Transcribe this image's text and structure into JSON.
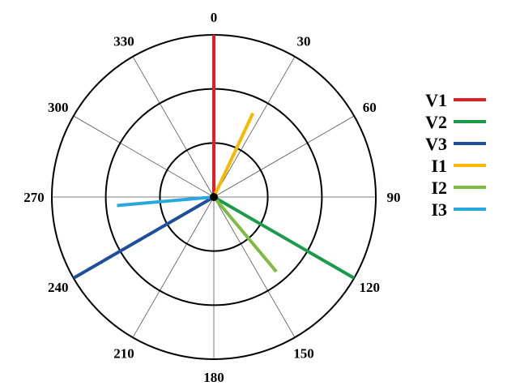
{
  "chart_data": {
    "type": "polar-phasor",
    "angle_labels": [
      "0",
      "30",
      "60",
      "90",
      "120",
      "150",
      "180",
      "210",
      "240",
      "270",
      "300",
      "330"
    ],
    "angles_deg": [
      0,
      30,
      60,
      90,
      120,
      150,
      180,
      210,
      240,
      270,
      300,
      330
    ],
    "rings": [
      0.333,
      0.667,
      1.0
    ],
    "grid": true,
    "direction": "clockwise",
    "zero_location": "top",
    "legend_placement": "right",
    "series": [
      {
        "name": "V1",
        "angle_deg": 0,
        "magnitude": 1.0,
        "color": "#e31f26"
      },
      {
        "name": "V2",
        "angle_deg": 120,
        "magnitude": 1.0,
        "color": "#1a9b4a"
      },
      {
        "name": "V3",
        "angle_deg": 240,
        "magnitude": 1.0,
        "color": "#1f4e9a"
      },
      {
        "name": "I1",
        "angle_deg": 25,
        "magnitude": 0.57,
        "color": "#f7b800"
      },
      {
        "name": "I2",
        "angle_deg": 140,
        "magnitude": 0.6,
        "color": "#7dbb42"
      },
      {
        "name": "I3",
        "angle_deg": 265,
        "magnitude": 0.6,
        "color": "#29a8e0"
      }
    ]
  }
}
